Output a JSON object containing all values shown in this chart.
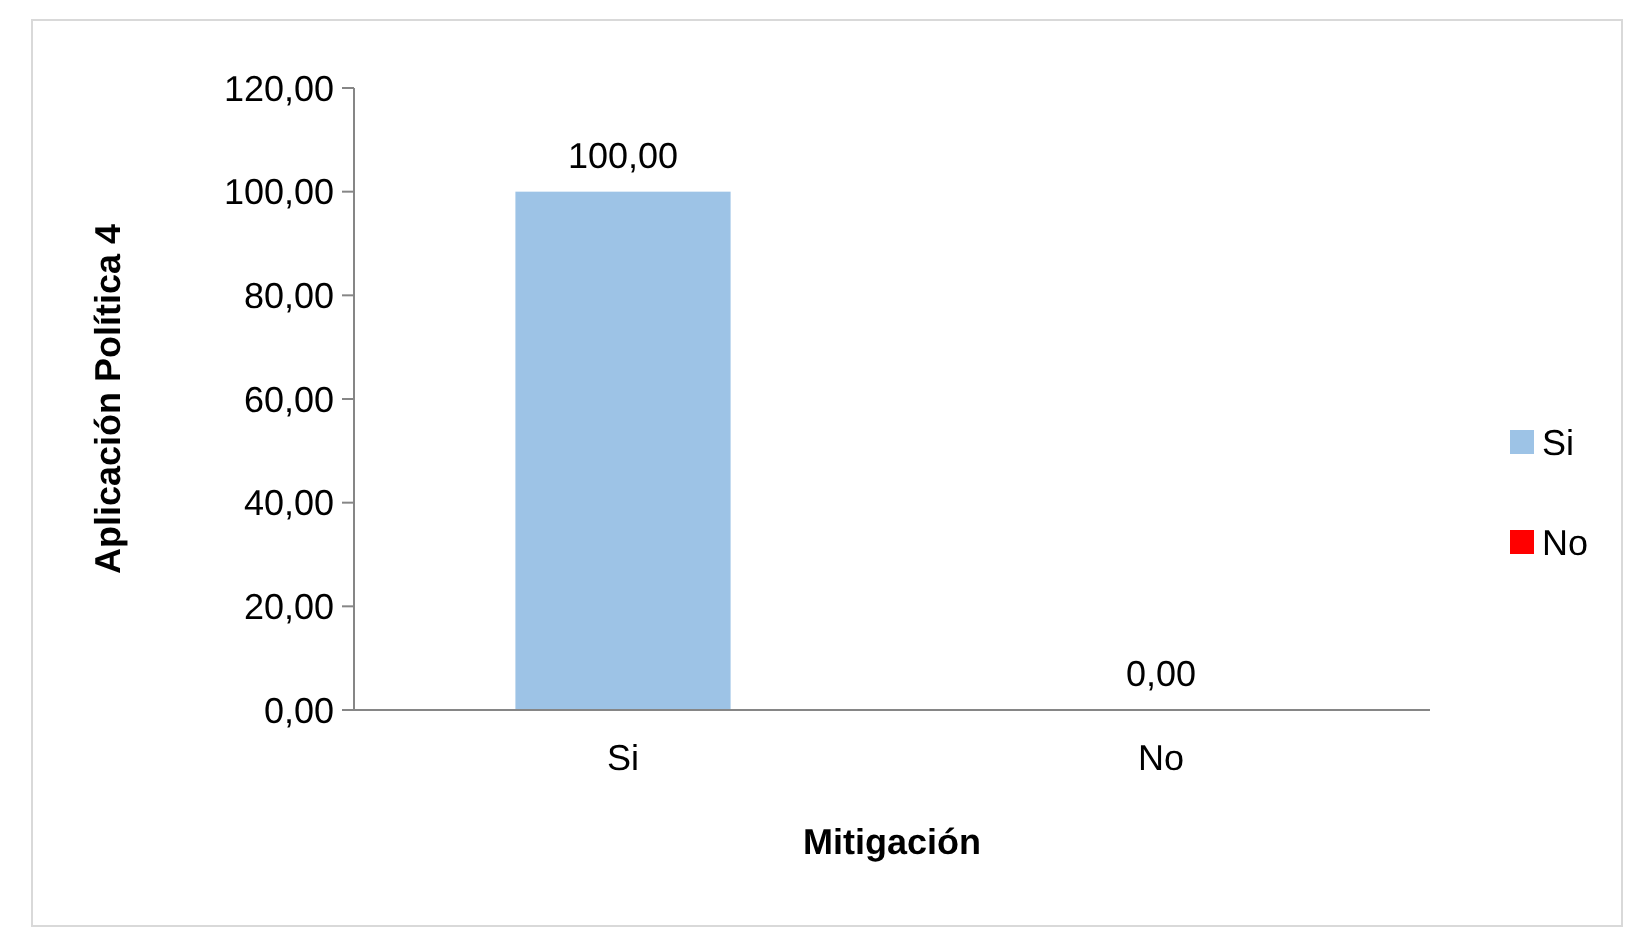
{
  "chart_data": {
    "type": "bar",
    "xlabel": "Mitigación",
    "ylabel": "Aplicación Política 4",
    "categories": [
      "Si",
      "No"
    ],
    "series": [
      {
        "name": "Si",
        "color": "#9dc3e6",
        "values": [
          100,
          null
        ],
        "value_labels": [
          "100,00",
          null
        ]
      },
      {
        "name": "No",
        "color": "#ff0000",
        "values": [
          null,
          0
        ],
        "value_labels": [
          null,
          "0,00"
        ]
      }
    ],
    "ylim": [
      0,
      120
    ],
    "yticks": [
      {
        "value": 0,
        "label": "0,00"
      },
      {
        "value": 20,
        "label": "20,00"
      },
      {
        "value": 40,
        "label": "40,00"
      },
      {
        "value": 60,
        "label": "60,00"
      },
      {
        "value": 80,
        "label": "80,00"
      },
      {
        "value": 100,
        "label": "100,00"
      },
      {
        "value": 120,
        "label": "120,00"
      }
    ],
    "legend": "right"
  }
}
